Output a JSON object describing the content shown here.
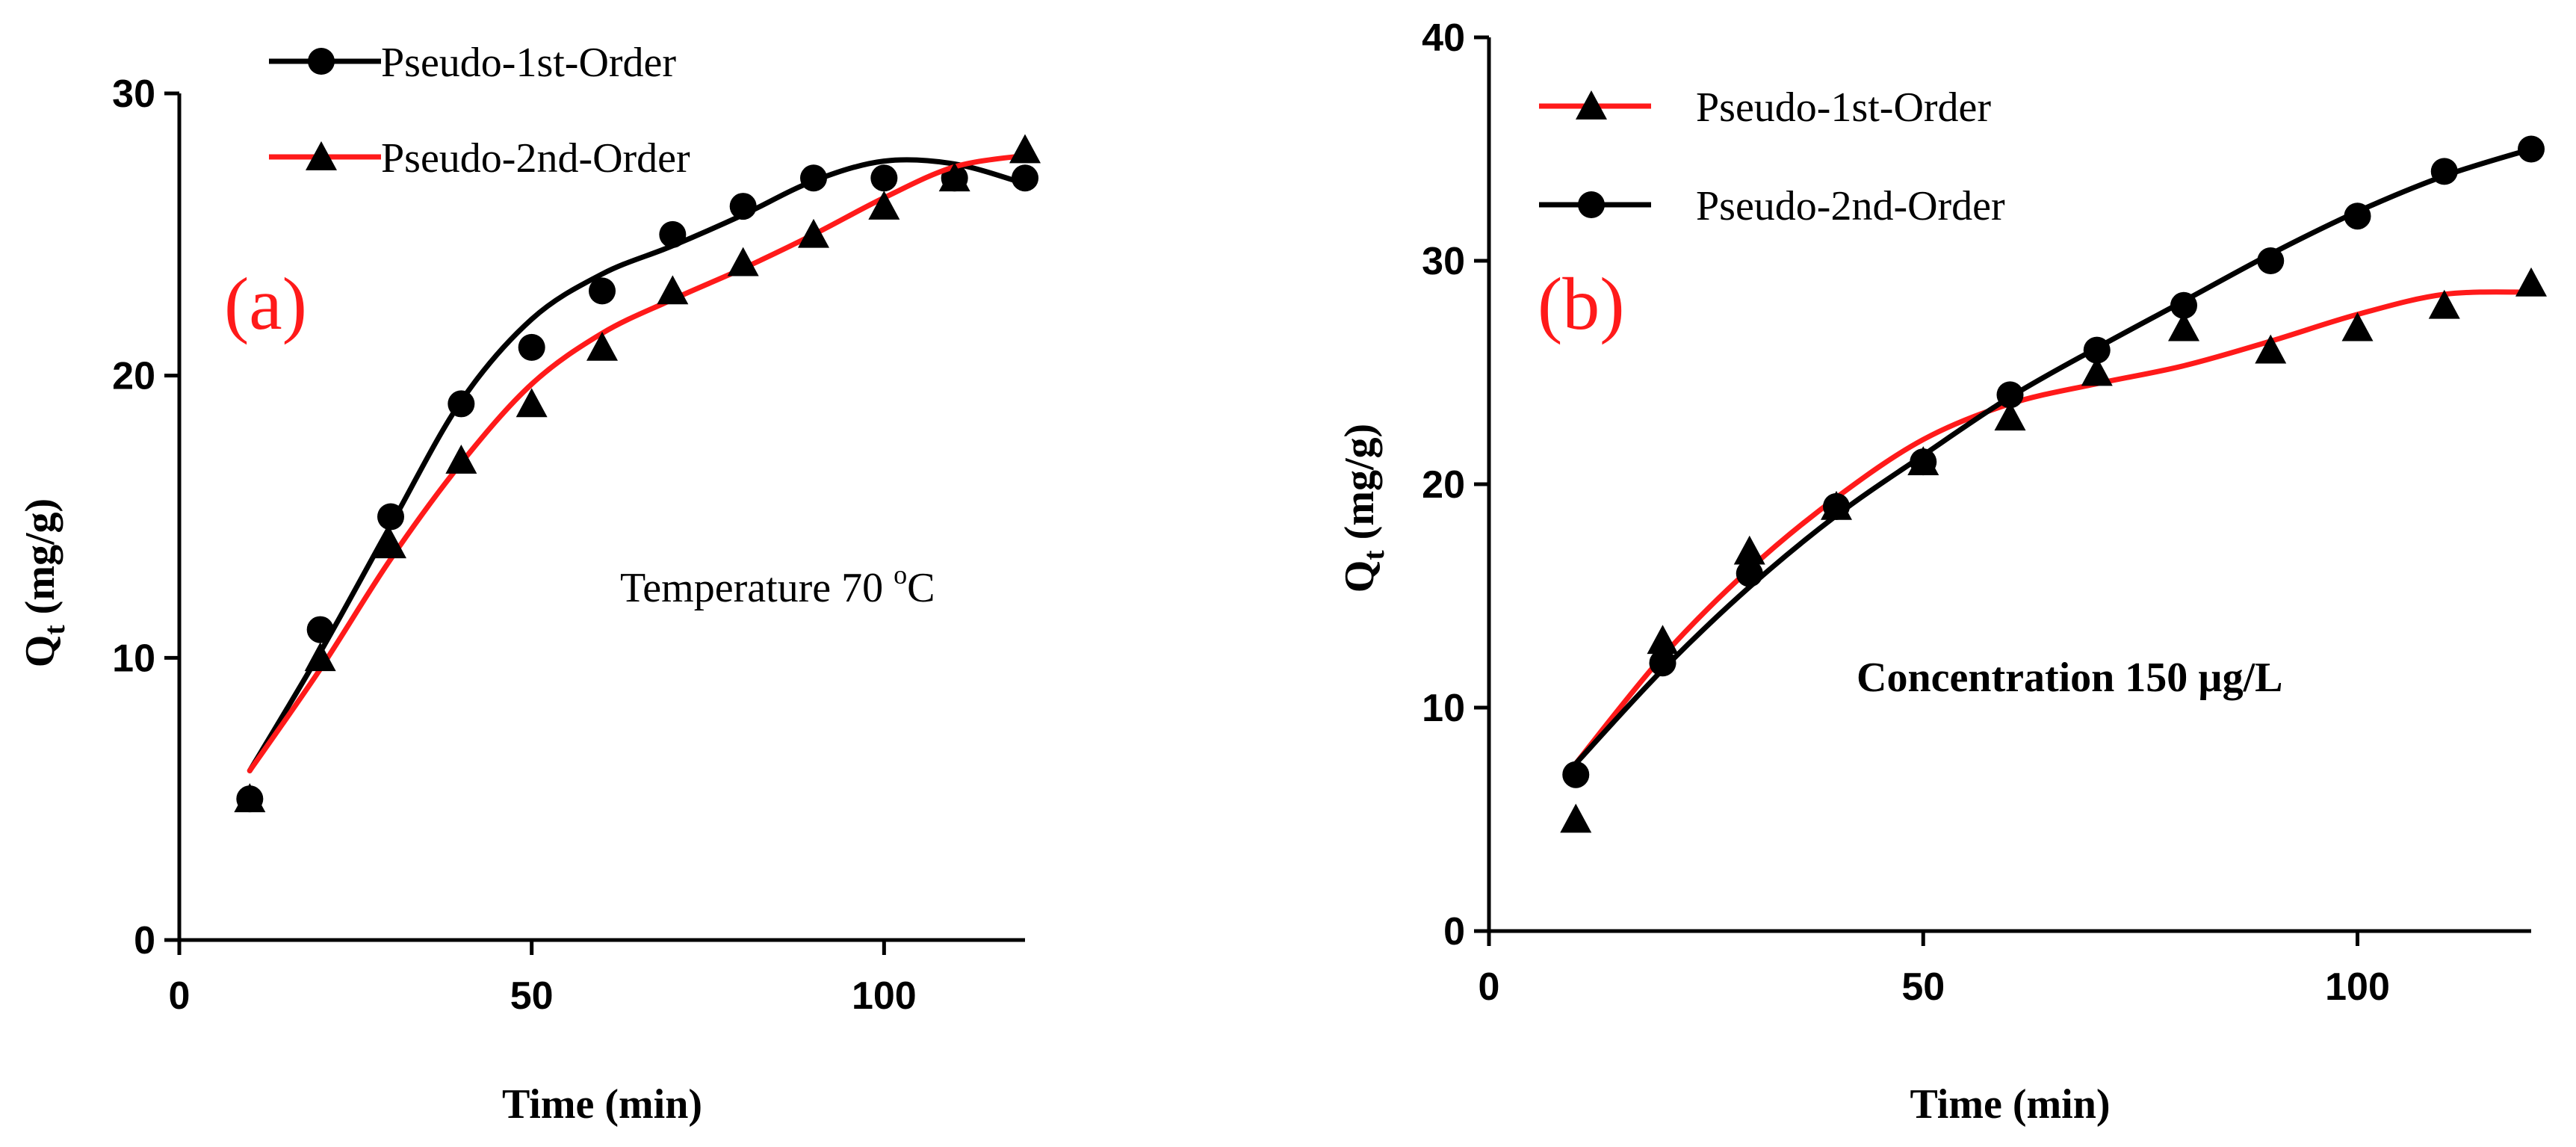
{
  "chart_data": [
    {
      "type": "scatter",
      "panel_label": "(a)",
      "annotation": {
        "text": "Temperature 70 ",
        "sup": "o",
        "tail": "C"
      },
      "xlabel": "Time (min)",
      "ylabel": "Q",
      "ylabel_sub": "t",
      "ylabel_unit": " (mg/g)",
      "xlim": [
        0,
        120
      ],
      "ylim": [
        0,
        30
      ],
      "xticks": [
        0,
        50,
        100
      ],
      "yticks": [
        0,
        10,
        20,
        30
      ],
      "legend_position": "top-left",
      "series": [
        {
          "name": "Pseudo-1st-Order",
          "marker": "circle",
          "color": "#000000",
          "x": [
            10,
            20,
            30,
            40,
            50,
            60,
            70,
            80,
            90,
            100,
            110,
            120
          ],
          "y": [
            5,
            11,
            15,
            19,
            21,
            23,
            25,
            26,
            27,
            27,
            27,
            27
          ],
          "fit_y": [
            6,
            10.2,
            14.7,
            19.1,
            22,
            23.6,
            24.6,
            25.7,
            26.9,
            27.6,
            27.5,
            26.8
          ]
        },
        {
          "name": "Pseudo-2nd-Order",
          "marker": "triangle",
          "color": "#ff1a1a",
          "x": [
            10,
            20,
            30,
            40,
            50,
            60,
            70,
            80,
            90,
            100,
            110,
            120
          ],
          "y": [
            5,
            10,
            14,
            17,
            19,
            21,
            23,
            24,
            25,
            26,
            27,
            28
          ],
          "fit_y": [
            6,
            9.6,
            13.5,
            16.9,
            19.7,
            21.5,
            22.7,
            23.8,
            25,
            26.3,
            27.4,
            27.8
          ]
        }
      ]
    },
    {
      "type": "scatter",
      "panel_label": "(b)",
      "annotation": {
        "text": "Concentration  150 µg/L"
      },
      "xlabel": "Time (min)",
      "ylabel": "Q",
      "ylabel_sub": "t",
      "ylabel_unit": " (mg/g)",
      "xlim": [
        0,
        120
      ],
      "ylim": [
        0,
        40
      ],
      "xticks": [
        0,
        50,
        100
      ],
      "yticks": [
        0,
        10,
        20,
        30,
        40
      ],
      "legend_position": "top-left",
      "series": [
        {
          "name": "Pseudo-1st-Order",
          "marker": "triangle",
          "color": "#ff1a1a",
          "x": [
            10,
            20,
            30,
            40,
            50,
            60,
            70,
            80,
            90,
            100,
            110,
            120
          ],
          "y": [
            5,
            13,
            17,
            19,
            21,
            23,
            25,
            27,
            26,
            27,
            28,
            29
          ],
          "fit_y": [
            7.5,
            12.3,
            16.2,
            19.4,
            22,
            23.6,
            24.5,
            25.3,
            26.4,
            27.6,
            28.5,
            28.6
          ]
        },
        {
          "name": "Pseudo-2nd-Order",
          "marker": "circle",
          "color": "#000000",
          "x": [
            10,
            20,
            30,
            40,
            50,
            60,
            70,
            80,
            90,
            100,
            110,
            120
          ],
          "y": [
            7,
            12,
            16,
            19,
            21,
            24,
            26,
            28,
            30,
            32,
            34,
            35
          ],
          "fit_y": [
            7.5,
            11.7,
            15.4,
            18.6,
            21.3,
            23.9,
            26.1,
            28.2,
            30.3,
            32.2,
            33.8,
            35
          ]
        }
      ]
    }
  ]
}
